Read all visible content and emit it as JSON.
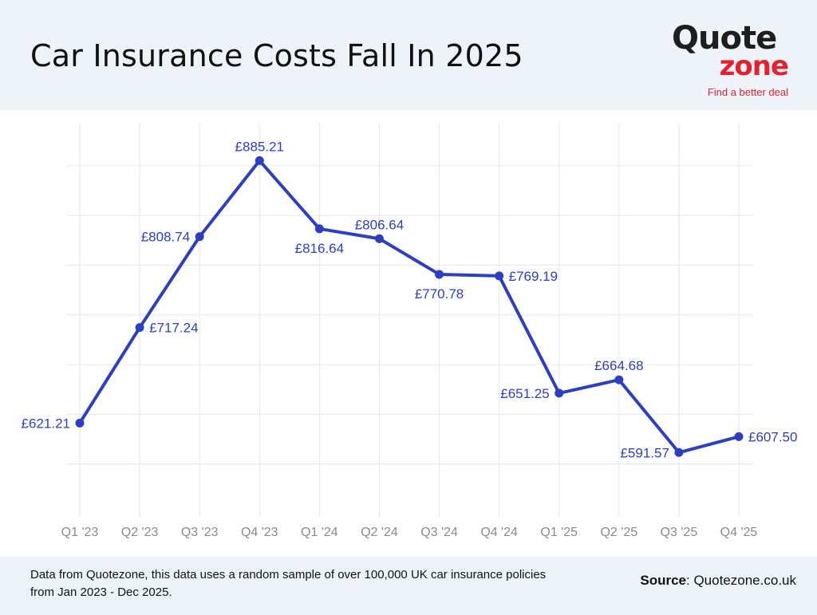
{
  "header": {
    "title": "Car Insurance Costs Fall In 2025",
    "logo_quote": "Quote",
    "logo_zone": "zone",
    "logo_tagline": "Find a better deal"
  },
  "colors": {
    "series": "#2b3fc2",
    "header_bg": "#eef3fa",
    "logo_dark": "#1e1e1e",
    "logo_red": "#e4202c"
  },
  "chart_data": {
    "type": "line",
    "title": "Car Insurance Costs Fall In 2025",
    "categories": [
      "Q1 '23",
      "Q2 '23",
      "Q3 '23",
      "Q4 '23",
      "Q1 '24",
      "Q2 '24",
      "Q3 '24",
      "Q4 '24",
      "Q1 '25",
      "Q2 '25",
      "Q3 '25",
      "Q4 '25"
    ],
    "values": [
      621.21,
      717.24,
      808.74,
      885.21,
      816.64,
      806.64,
      770.78,
      769.19,
      651.25,
      664.68,
      591.57,
      607.5
    ],
    "labels": [
      "£621.21",
      "£717.24",
      "£808.74",
      "£885.21",
      "£816.64",
      "£806.64",
      "£770.78",
      "£769.19",
      "£651.25",
      "£664.68",
      "£591.57",
      "£607.50"
    ],
    "label_placement": [
      "left",
      "right",
      "left",
      "above",
      "below",
      "above",
      "below",
      "right",
      "left",
      "above",
      "left",
      "right"
    ],
    "ylim": [
      530,
      920
    ],
    "y_gridlines": [
      580,
      630,
      680,
      730,
      780,
      830,
      880
    ],
    "grid": true,
    "xlabel": "",
    "ylabel": ""
  },
  "footer": {
    "note": "Data from Quotezone, this data uses a random sample of over 100,000 UK car insurance policies from Jan 2023 - Dec 2025.",
    "source_label": "Source",
    "source_value": ": Quotezone.co.uk"
  }
}
